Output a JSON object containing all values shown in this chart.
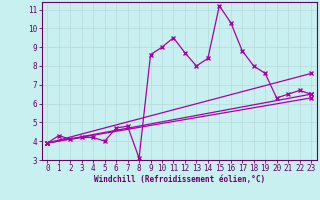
{
  "xlabel": "Windchill (Refroidissement éolien,°C)",
  "bg_color": "#c8f0f0",
  "grid_color": "#b8d8d8",
  "line_color": "#aa00aa",
  "axis_color": "#660066",
  "xlim": [
    -0.5,
    23.5
  ],
  "ylim": [
    3,
    11.4
  ],
  "xticks": [
    0,
    1,
    2,
    3,
    4,
    5,
    6,
    7,
    8,
    9,
    10,
    11,
    12,
    13,
    14,
    15,
    16,
    17,
    18,
    19,
    20,
    21,
    22,
    23
  ],
  "yticks": [
    3,
    4,
    5,
    6,
    7,
    8,
    9,
    10,
    11
  ],
  "main_x": [
    0,
    1,
    2,
    3,
    4,
    5,
    6,
    7,
    8,
    9,
    10,
    11,
    12,
    13,
    14,
    15,
    16,
    17,
    18,
    19,
    20,
    21,
    22,
    23
  ],
  "main_y": [
    3.9,
    4.3,
    4.1,
    4.2,
    4.2,
    4.0,
    4.7,
    4.8,
    3.1,
    8.6,
    9.0,
    9.5,
    8.7,
    8.0,
    8.4,
    11.2,
    10.3,
    8.8,
    8.0,
    7.6,
    6.3,
    6.5,
    6.7,
    6.5
  ],
  "line1_x": [
    0,
    23
  ],
  "line1_y": [
    3.9,
    7.6
  ],
  "line2_x": [
    0,
    23
  ],
  "line2_y": [
    3.9,
    6.5
  ],
  "line3_x": [
    0,
    23
  ],
  "line3_y": [
    3.9,
    6.3
  ],
  "marker": "x",
  "markersize": 3,
  "linewidth": 0.9,
  "label_fontsize": 5.5,
  "tick_fontsize": 5.5
}
